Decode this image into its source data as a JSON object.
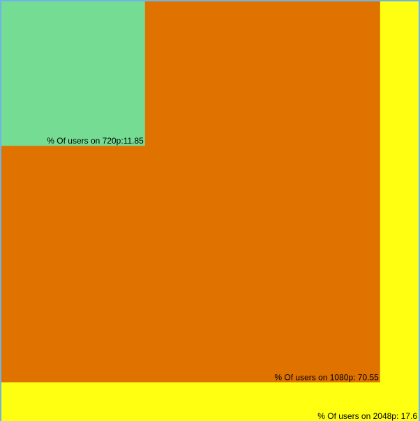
{
  "chart_data": {
    "type": "nested-squares",
    "categories": [
      "720p",
      "1080p",
      "2048p"
    ],
    "series": [
      {
        "name": "720p",
        "label": "% Of users on 720p:11.85",
        "value": 11.85,
        "color": "#75dd93"
      },
      {
        "name": "1080p",
        "label": "% Of users on 1080p: 70.55",
        "value": 70.55,
        "color": "#e07200"
      },
      {
        "name": "2048p",
        "label": "% Of users on 2048p: 17.6",
        "value": 17.6,
        "color": "#ffff12"
      }
    ],
    "border_color": "#6fb4e6",
    "legend": "none",
    "grid": false
  }
}
